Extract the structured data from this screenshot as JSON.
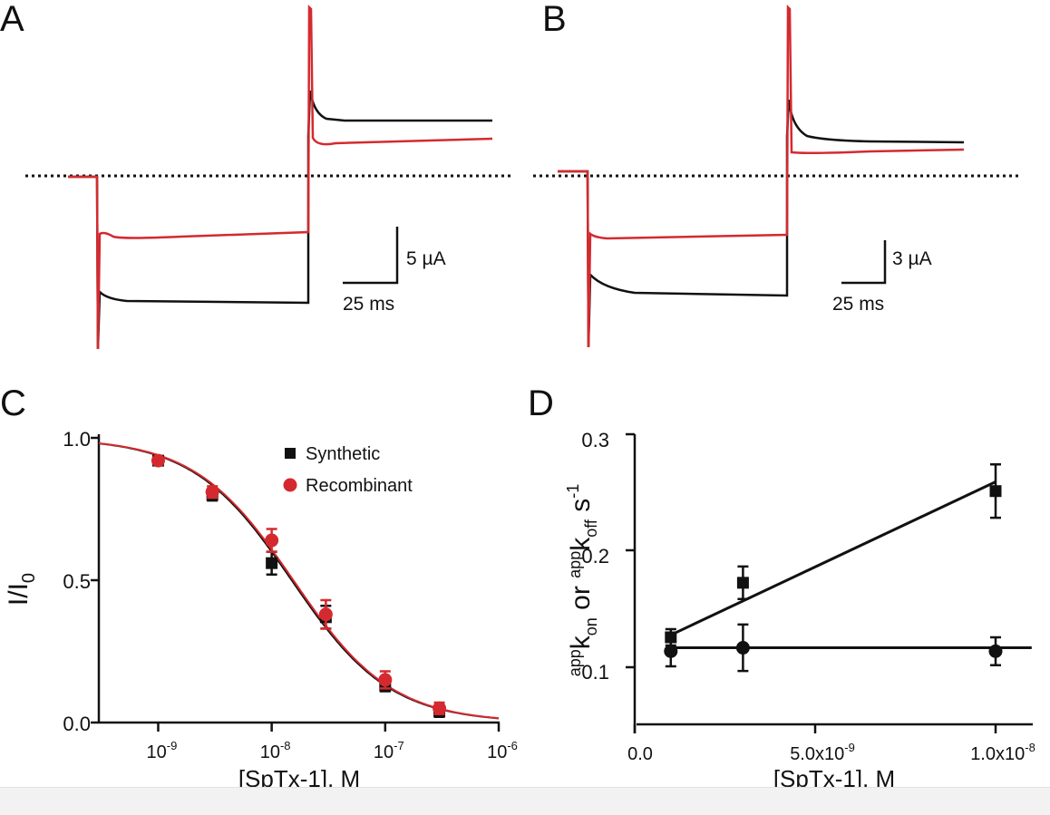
{
  "colors": {
    "black": "#111111",
    "red": "#d42a2f"
  },
  "panels": {
    "A": {
      "label": "A",
      "scale_current": "5 µA",
      "scale_time": "25 ms"
    },
    "B": {
      "label": "B",
      "scale_current": "3 µA",
      "scale_time": "25 ms"
    },
    "C": {
      "label": "C"
    },
    "D": {
      "label": "D"
    }
  },
  "chart_data": [
    {
      "panel": "C",
      "type": "scatter",
      "xlabel": "[SpTx-1], M",
      "ylabel": "I/I0",
      "ylabel_main": "I/I",
      "ylabel_sub": "0",
      "x_scale": "log",
      "xlim": [
        3e-10,
        1e-06
      ],
      "ylim": [
        0,
        1.0
      ],
      "x_ticks": [
        {
          "base": "10",
          "exp": "-9"
        },
        {
          "base": "10",
          "exp": "-8"
        },
        {
          "base": "10",
          "exp": "-7"
        },
        {
          "base": "10",
          "exp": "-6"
        }
      ],
      "y_ticks": [
        "0.0",
        "0.5",
        "1.0"
      ],
      "legend_position": "top-right",
      "series": [
        {
          "name": "Synthetic",
          "marker": "square",
          "color": "#111111",
          "x": [
            1e-09,
            3e-09,
            1e-08,
            3e-08,
            1e-07,
            3e-07
          ],
          "y": [
            0.92,
            0.8,
            0.56,
            0.37,
            0.13,
            0.04
          ],
          "err": [
            0.01,
            0.02,
            0.04,
            0.04,
            0.02,
            0.02
          ],
          "fit": {
            "type": "hill",
            "ic50": 1.5e-08,
            "n": 1.0
          }
        },
        {
          "name": "Recombinant",
          "marker": "circle",
          "color": "#d42a2f",
          "x": [
            1e-09,
            3e-09,
            1e-08,
            3e-08,
            1e-07,
            3e-07
          ],
          "y": [
            0.92,
            0.81,
            0.64,
            0.38,
            0.15,
            0.05
          ],
          "err": [
            0.01,
            0.02,
            0.04,
            0.05,
            0.03,
            0.02
          ],
          "fit": {
            "type": "hill",
            "ic50": 1.55e-08,
            "n": 1.0
          }
        }
      ]
    },
    {
      "panel": "D",
      "type": "scatter",
      "xlabel": "[SpTx-1], M",
      "ylabel": "appkon or appkoff s-1",
      "xlim": [
        0,
        1.1e-08
      ],
      "ylim": [
        0.05,
        0.3
      ],
      "x_ticks": [
        {
          "base": "0.0",
          "exp": ""
        },
        {
          "base": "5.0x10",
          "exp": "-9"
        },
        {
          "base": "1.0x10",
          "exp": "-8"
        }
      ],
      "x_tick_values": [
        0,
        5e-09,
        1e-08
      ],
      "y_ticks": [
        "0.1",
        "0.2",
        "0.3"
      ],
      "series": [
        {
          "marker": "square",
          "color": "#111111",
          "x": [
            1e-09,
            3e-09,
            1e-08
          ],
          "y": [
            0.125,
            0.172,
            0.251
          ],
          "err": [
            0.007,
            0.014,
            0.023
          ],
          "fit": {
            "type": "linear",
            "x": [
              1e-09,
              1e-08
            ],
            "y": [
              0.127,
              0.259
            ]
          }
        },
        {
          "marker": "circle",
          "color": "#111111",
          "x": [
            1e-09,
            3e-09,
            1e-08
          ],
          "y": [
            0.113,
            0.116,
            0.113
          ],
          "err": [
            0.013,
            0.02,
            0.012
          ],
          "fit": {
            "type": "linear",
            "x": [
              1e-09,
              1.1e-08
            ],
            "y": [
              0.116,
              0.116
            ]
          }
        }
      ]
    }
  ]
}
